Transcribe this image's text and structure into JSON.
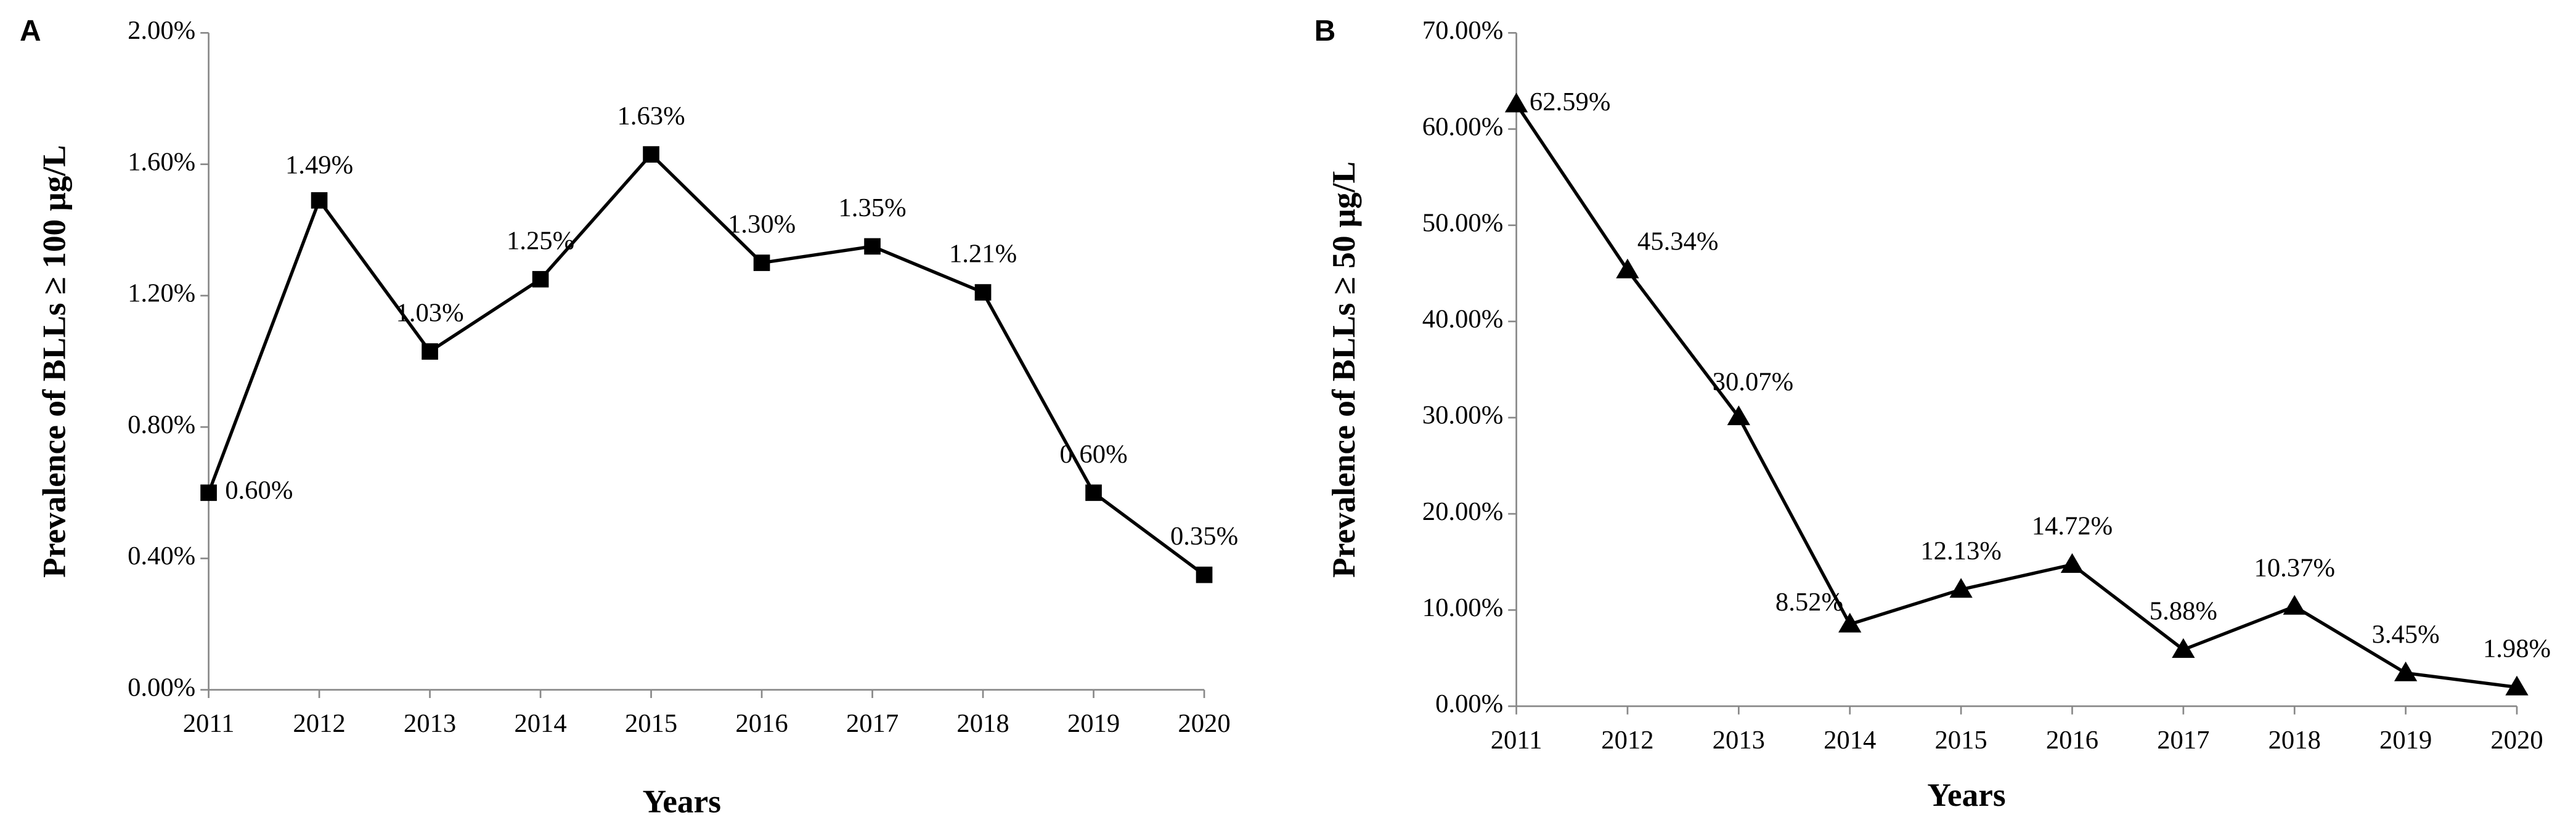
{
  "chart_data": [
    {
      "type": "line",
      "label": "A",
      "x_label": "Years",
      "y_label": "Prevalence of BLLs ≥ 100 μg/L",
      "categories": [
        "2011",
        "2012",
        "2013",
        "2014",
        "2015",
        "2016",
        "2017",
        "2018",
        "2019",
        "2020"
      ],
      "values": [
        0.6,
        1.49,
        1.03,
        1.25,
        1.63,
        1.3,
        1.35,
        1.21,
        0.6,
        0.35
      ],
      "value_labels": [
        "0.60%",
        "1.49%",
        "1.03%",
        "1.25%",
        "1.63%",
        "1.30%",
        "1.35%",
        "1.21%",
        "0.60%",
        "0.35%"
      ],
      "color": "#000000",
      "marker": "square",
      "ylim": [
        0,
        2
      ],
      "yticks": [
        {
          "value": 0,
          "label": "0.00%"
        },
        {
          "value": 0.4,
          "label": "0.40%"
        },
        {
          "value": 0.8,
          "label": "0.80%"
        },
        {
          "value": 1.2,
          "label": "1.20%"
        },
        {
          "value": 1.6,
          "label": "1.60%"
        },
        {
          "value": 2,
          "label": "2.00%"
        }
      ]
    },
    {
      "type": "line",
      "label": "B",
      "x_label": "Years",
      "y_label": "Prevalence of BLLs ≥ 50 μg/L",
      "categories": [
        "2011",
        "2012",
        "2013",
        "2014",
        "2015",
        "2016",
        "2017",
        "2018",
        "2019",
        "2020"
      ],
      "values": [
        62.59,
        45.34,
        30.07,
        8.52,
        12.13,
        14.72,
        5.88,
        10.37,
        3.45,
        1.98
      ],
      "value_labels": [
        "62.59%",
        "45.34%",
        "30.07%",
        "8.52%",
        "12.13%",
        "14.72%",
        "5.88%",
        "10.37%",
        "3.45%",
        "1.98%"
      ],
      "color": "#000000",
      "marker": "triangle",
      "ylim": [
        0,
        70
      ],
      "yticks": [
        {
          "value": 0,
          "label": "0.00%"
        },
        {
          "value": 10,
          "label": "10.00%"
        },
        {
          "value": 20,
          "label": "20.00%"
        },
        {
          "value": 30,
          "label": "30.00%"
        },
        {
          "value": 40,
          "label": "40.00%"
        },
        {
          "value": 50,
          "label": "50.00%"
        },
        {
          "value": 60,
          "label": "60.00%"
        },
        {
          "value": 70,
          "label": "70.00%"
        }
      ]
    }
  ]
}
